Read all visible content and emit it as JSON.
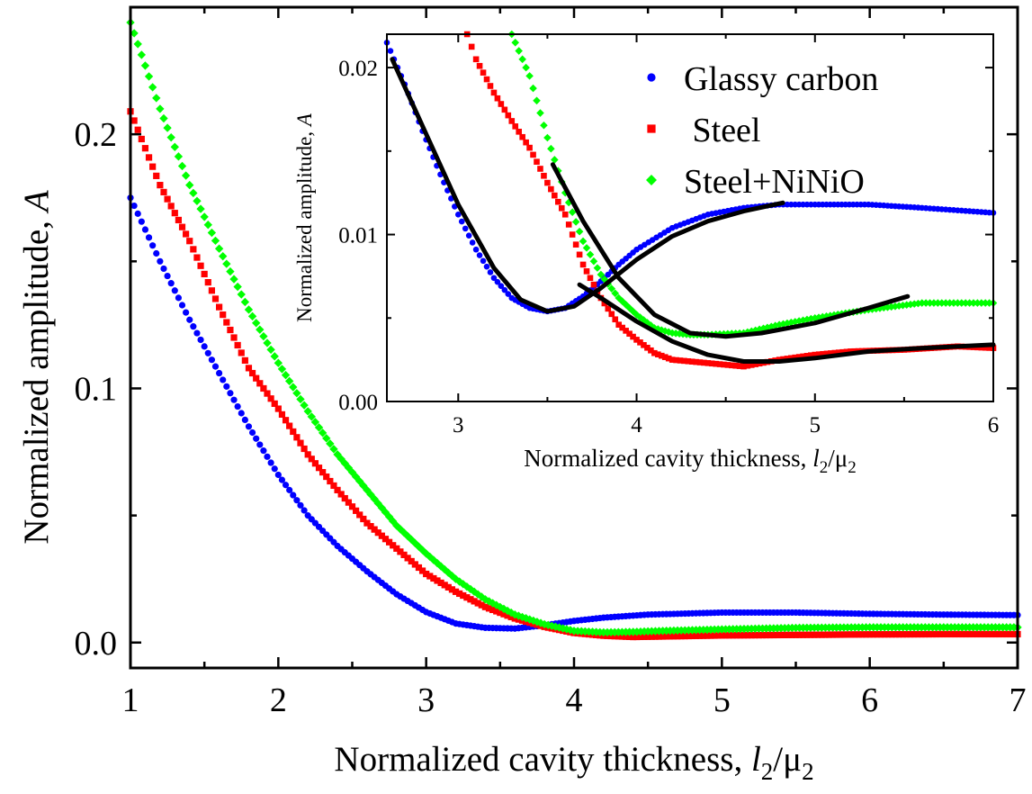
{
  "chart_data": [
    {
      "type": "scatter",
      "panel": "main",
      "title": "",
      "xlabel": {
        "prefix": "Normalized cavity thickness, ",
        "var1": "l",
        "sub1": "2",
        "slash": "/",
        "var2": "μ",
        "sub2": "2"
      },
      "ylabel": {
        "prefix": "Normalized amplitude, ",
        "var": "A"
      },
      "xlim": [
        1,
        7
      ],
      "ylim": [
        -0.01,
        0.25
      ],
      "xticks": [
        "1",
        "2",
        "3",
        "4",
        "5",
        "6",
        "7"
      ],
      "yticks": [
        "0.0",
        "0.1",
        "0.2"
      ],
      "ytick_values": [
        0.0,
        0.1,
        0.2
      ],
      "grid": false,
      "series": [
        {
          "name": "Glassy carbon",
          "color": "#0000ff",
          "marker": "circle",
          "points": [
            [
              1.0,
              0.175
            ],
            [
              1.2,
              0.15
            ],
            [
              1.4,
              0.127
            ],
            [
              1.6,
              0.106
            ],
            [
              1.8,
              0.085
            ],
            [
              2.0,
              0.066
            ],
            [
              2.2,
              0.05
            ],
            [
              2.4,
              0.038
            ],
            [
              2.6,
              0.028
            ],
            [
              2.8,
              0.019
            ],
            [
              3.0,
              0.012
            ],
            [
              3.2,
              0.0075
            ],
            [
              3.4,
              0.0058
            ],
            [
              3.6,
              0.0055
            ],
            [
              3.8,
              0.0068
            ],
            [
              4.0,
              0.0085
            ],
            [
              4.2,
              0.0098
            ],
            [
              4.5,
              0.011
            ],
            [
              5.0,
              0.0118
            ],
            [
              5.5,
              0.0118
            ],
            [
              6.0,
              0.0113
            ],
            [
              6.5,
              0.011
            ],
            [
              7.0,
              0.0108
            ]
          ]
        },
        {
          "name": "Steel",
          "color": "#ff0000",
          "marker": "square",
          "points": [
            [
              1.0,
              0.209
            ],
            [
              1.2,
              0.18
            ],
            [
              1.4,
              0.158
            ],
            [
              1.6,
              0.132
            ],
            [
              1.8,
              0.108
            ],
            [
              2.0,
              0.092
            ],
            [
              2.2,
              0.074
            ],
            [
              2.4,
              0.06
            ],
            [
              2.6,
              0.047
            ],
            [
              2.8,
              0.037
            ],
            [
              3.0,
              0.027
            ],
            [
              3.2,
              0.02
            ],
            [
              3.4,
              0.014
            ],
            [
              3.6,
              0.0095
            ],
            [
              3.8,
              0.0062
            ],
            [
              4.0,
              0.0038
            ],
            [
              4.2,
              0.0027
            ],
            [
              4.4,
              0.0022
            ],
            [
              4.6,
              0.0024
            ],
            [
              5.0,
              0.0028
            ],
            [
              5.5,
              0.003
            ],
            [
              6.0,
              0.0032
            ],
            [
              6.5,
              0.0033
            ],
            [
              7.0,
              0.0033
            ]
          ]
        },
        {
          "name": "Steel+NiNiO",
          "color": "#00ff00",
          "marker": "diamond",
          "points": [
            [
              1.0,
              0.244
            ],
            [
              1.2,
              0.21
            ],
            [
              1.4,
              0.18
            ],
            [
              1.6,
              0.155
            ],
            [
              1.8,
              0.131
            ],
            [
              2.0,
              0.11
            ],
            [
              2.2,
              0.091
            ],
            [
              2.4,
              0.074
            ],
            [
              2.6,
              0.06
            ],
            [
              2.8,
              0.046
            ],
            [
              3.0,
              0.035
            ],
            [
              3.2,
              0.025
            ],
            [
              3.4,
              0.017
            ],
            [
              3.6,
              0.011
            ],
            [
              3.8,
              0.0072
            ],
            [
              4.0,
              0.0046
            ],
            [
              4.2,
              0.004
            ],
            [
              4.4,
              0.0042
            ],
            [
              4.6,
              0.0046
            ],
            [
              5.0,
              0.0052
            ],
            [
              5.5,
              0.0058
            ],
            [
              6.0,
              0.006
            ],
            [
              6.5,
              0.006
            ],
            [
              7.0,
              0.006
            ]
          ]
        }
      ]
    },
    {
      "type": "scatter",
      "panel": "inset",
      "title": "",
      "xlabel": {
        "prefix": "Normalized cavity thickness, ",
        "var1": "l",
        "sub1": "2",
        "slash": "/",
        "var2": "μ",
        "sub2": "2"
      },
      "ylabel": {
        "prefix": "Normalized amplitude, ",
        "var": "A"
      },
      "xlim": [
        2.6,
        6
      ],
      "ylim": [
        0,
        0.022
      ],
      "xticks": [
        "3",
        "4",
        "5",
        "6"
      ],
      "xtick_values": [
        3,
        4,
        5,
        6
      ],
      "yticks": [
        "0.00",
        "0.01",
        "0.02"
      ],
      "ytick_values": [
        0.0,
        0.01,
        0.02
      ],
      "grid": false,
      "legend": {
        "position": "top-right",
        "entries": [
          "Glassy carbon",
          " Steel",
          "Steel+NiNiO"
        ]
      },
      "series": [
        {
          "name": "Glassy carbon",
          "color": "#0000ff",
          "marker": "circle",
          "points": [
            [
              2.6,
              0.0215
            ],
            [
              2.7,
              0.019
            ],
            [
              2.8,
              0.0162
            ],
            [
              2.9,
              0.0136
            ],
            [
              3.0,
              0.0112
            ],
            [
              3.1,
              0.0091
            ],
            [
              3.2,
              0.0074
            ],
            [
              3.3,
              0.0062
            ],
            [
              3.4,
              0.0056
            ],
            [
              3.5,
              0.0054
            ],
            [
              3.6,
              0.0056
            ],
            [
              3.7,
              0.0063
            ],
            [
              3.8,
              0.0072
            ],
            [
              3.9,
              0.0082
            ],
            [
              4.0,
              0.0091
            ],
            [
              4.2,
              0.0104
            ],
            [
              4.4,
              0.0112
            ],
            [
              4.6,
              0.0116
            ],
            [
              4.8,
              0.0118
            ],
            [
              5.0,
              0.0118
            ],
            [
              5.3,
              0.0118
            ],
            [
              5.6,
              0.0116
            ],
            [
              6.0,
              0.0113
            ]
          ]
        },
        {
          "name": "Steel",
          "color": "#ff0000",
          "marker": "square",
          "points": [
            [
              3.05,
              0.022
            ],
            [
              3.1,
              0.0205
            ],
            [
              3.2,
              0.0185
            ],
            [
              3.3,
              0.0168
            ],
            [
              3.4,
              0.0152
            ],
            [
              3.5,
              0.0131
            ],
            [
              3.6,
              0.0112
            ],
            [
              3.7,
              0.0082
            ],
            [
              3.8,
              0.0062
            ],
            [
              3.9,
              0.0046
            ],
            [
              4.0,
              0.0037
            ],
            [
              4.1,
              0.0029
            ],
            [
              4.2,
              0.0025
            ],
            [
              4.4,
              0.0023
            ],
            [
              4.6,
              0.0021
            ],
            [
              4.8,
              0.0025
            ],
            [
              5.0,
              0.0028
            ],
            [
              5.2,
              0.003
            ],
            [
              5.5,
              0.0031
            ],
            [
              5.8,
              0.0033
            ],
            [
              6.0,
              0.0032
            ]
          ]
        },
        {
          "name": "Steel+NiNiO",
          "color": "#00ff00",
          "marker": "diamond",
          "points": [
            [
              3.3,
              0.022
            ],
            [
              3.4,
              0.0195
            ],
            [
              3.5,
              0.0158
            ],
            [
              3.6,
              0.0125
            ],
            [
              3.7,
              0.0096
            ],
            [
              3.8,
              0.0076
            ],
            [
              3.9,
              0.0062
            ],
            [
              4.0,
              0.0052
            ],
            [
              4.1,
              0.0044
            ],
            [
              4.2,
              0.0041
            ],
            [
              4.3,
              0.004
            ],
            [
              4.4,
              0.004
            ],
            [
              4.6,
              0.0041
            ],
            [
              4.8,
              0.0046
            ],
            [
              5.0,
              0.005
            ],
            [
              5.3,
              0.0055
            ],
            [
              5.6,
              0.0059
            ],
            [
              6.0,
              0.0059
            ]
          ]
        }
      ],
      "fits": [
        {
          "color": "#000000",
          "points": [
            [
              2.63,
              0.0205
            ],
            [
              2.8,
              0.0165
            ],
            [
              3.0,
              0.0118
            ],
            [
              3.2,
              0.008
            ],
            [
              3.35,
              0.0061
            ],
            [
              3.5,
              0.0054
            ],
            [
              3.65,
              0.0057
            ],
            [
              3.8,
              0.0068
            ],
            [
              4.0,
              0.0085
            ],
            [
              4.2,
              0.0099
            ],
            [
              4.4,
              0.0108
            ],
            [
              4.6,
              0.0114
            ],
            [
              4.82,
              0.0119
            ]
          ]
        },
        {
          "color": "#000000",
          "points": [
            [
              3.68,
              0.007
            ],
            [
              3.8,
              0.0062
            ],
            [
              4.0,
              0.0048
            ],
            [
              4.2,
              0.0036
            ],
            [
              4.4,
              0.0028
            ],
            [
              4.6,
              0.0024
            ],
            [
              4.8,
              0.0024
            ],
            [
              5.0,
              0.0026
            ],
            [
              5.3,
              0.003
            ],
            [
              5.6,
              0.0032
            ],
            [
              6.0,
              0.0034
            ]
          ]
        },
        {
          "color": "#000000",
          "points": [
            [
              3.53,
              0.0142
            ],
            [
              3.7,
              0.0108
            ],
            [
              3.9,
              0.0074
            ],
            [
              4.1,
              0.0052
            ],
            [
              4.3,
              0.0041
            ],
            [
              4.5,
              0.0039
            ],
            [
              4.7,
              0.0041
            ],
            [
              5.0,
              0.0047
            ],
            [
              5.3,
              0.0056
            ],
            [
              5.52,
              0.0063
            ]
          ]
        }
      ]
    }
  ]
}
